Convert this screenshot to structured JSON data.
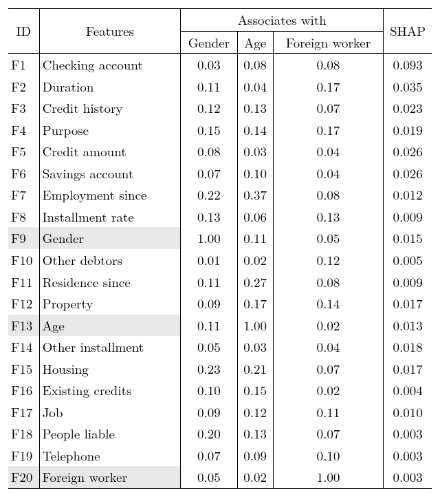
{
  "headers": {
    "id": "ID",
    "features": "Features",
    "assoc": "Associates with",
    "gender": "Gender",
    "age": "Age",
    "foreign": "Foreign worker",
    "shap": "SHAP"
  },
  "highlight_color": "#e8e8e8",
  "rows": [
    {
      "id": "F1",
      "feature": "Checking account",
      "gender": "0.03",
      "age": "0.08",
      "foreign": "0.08",
      "shap": "0.093",
      "hl": false
    },
    {
      "id": "F2",
      "feature": "Duration",
      "gender": "0.11",
      "age": "0.04",
      "foreign": "0.17",
      "shap": "0.035",
      "hl": false
    },
    {
      "id": "F3",
      "feature": "Credit history",
      "gender": "0.12",
      "age": "0.13",
      "foreign": "0.07",
      "shap": "0.023",
      "hl": false
    },
    {
      "id": "F4",
      "feature": "Purpose",
      "gender": "0.15",
      "age": "0.14",
      "foreign": "0.17",
      "shap": "0.019",
      "hl": false
    },
    {
      "id": "F5",
      "feature": "Credit amount",
      "gender": "0.08",
      "age": "0.03",
      "foreign": "0.04",
      "shap": "0.026",
      "hl": false
    },
    {
      "id": "F6",
      "feature": "Savings account",
      "gender": "0.07",
      "age": "0.10",
      "foreign": "0.04",
      "shap": "0.026",
      "hl": false
    },
    {
      "id": "F7",
      "feature": "Employment since",
      "gender": "0.22",
      "age": "0.37",
      "foreign": "0.08",
      "shap": "0.012",
      "hl": false
    },
    {
      "id": "F8",
      "feature": "Installment rate",
      "gender": "0.13",
      "age": "0.06",
      "foreign": "0.13",
      "shap": "0.009",
      "hl": false
    },
    {
      "id": "F9",
      "feature": "Gender",
      "gender": "1.00",
      "age": "0.11",
      "foreign": "0.05",
      "shap": "0.015",
      "hl": true
    },
    {
      "id": "F10",
      "feature": "Other debtors",
      "gender": "0.01",
      "age": "0.02",
      "foreign": "0.12",
      "shap": "0.005",
      "hl": false
    },
    {
      "id": "F11",
      "feature": "Residence since",
      "gender": "0.11",
      "age": "0.27",
      "foreign": "0.08",
      "shap": "0.009",
      "hl": false
    },
    {
      "id": "F12",
      "feature": "Property",
      "gender": "0.09",
      "age": "0.17",
      "foreign": "0.14",
      "shap": "0.017",
      "hl": false
    },
    {
      "id": "F13",
      "feature": "Age",
      "gender": "0.11",
      "age": "1.00",
      "foreign": "0.02",
      "shap": "0.013",
      "hl": true
    },
    {
      "id": "F14",
      "feature": "Other installment",
      "gender": "0.05",
      "age": "0.03",
      "foreign": "0.04",
      "shap": "0.018",
      "hl": false
    },
    {
      "id": "F15",
      "feature": "Housing",
      "gender": "0.23",
      "age": "0.21",
      "foreign": "0.07",
      "shap": "0.017",
      "hl": false
    },
    {
      "id": "F16",
      "feature": "Existing credits",
      "gender": "0.10",
      "age": "0.15",
      "foreign": "0.02",
      "shap": "0.004",
      "hl": false
    },
    {
      "id": "F17",
      "feature": "Job",
      "gender": "0.09",
      "age": "0.12",
      "foreign": "0.11",
      "shap": "0.010",
      "hl": false
    },
    {
      "id": "F18",
      "feature": "People liable",
      "gender": "0.20",
      "age": "0.13",
      "foreign": "0.07",
      "shap": "0.003",
      "hl": false
    },
    {
      "id": "F19",
      "feature": "Telephone",
      "gender": "0.07",
      "age": "0.09",
      "foreign": "0.10",
      "shap": "0.003",
      "hl": false
    },
    {
      "id": "F20",
      "feature": "Foreign worker",
      "gender": "0.05",
      "age": "0.02",
      "foreign": "1.00",
      "shap": "0.003",
      "hl": true
    }
  ]
}
